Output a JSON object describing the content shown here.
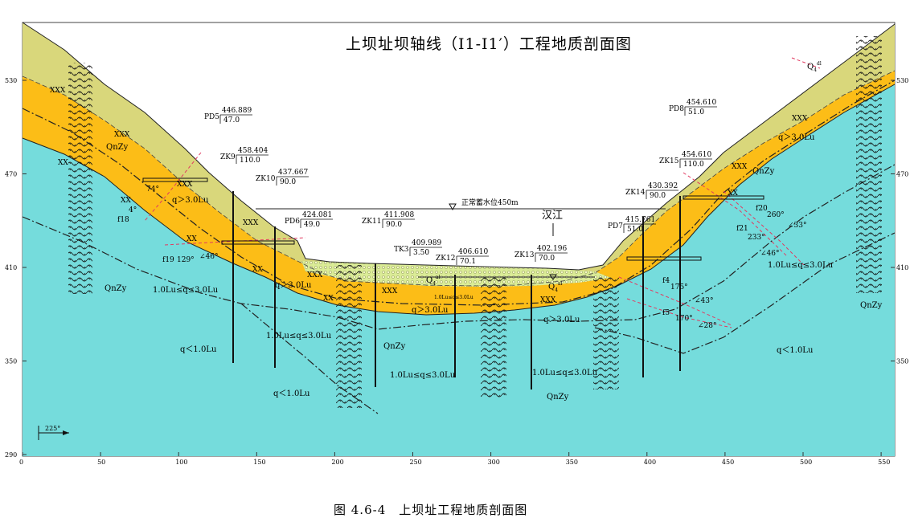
{
  "title": "上坝址坝轴线（Ⅰ1-Ⅰ1′）工程地质剖面图",
  "caption": "图 4.6-4　上坝址工程地质剖面图",
  "colors": {
    "bedrock": "#75dcdc",
    "weathered_strong": "#fcbd17",
    "weathered_top": "#d9d77b",
    "alluvium": "#dbec96",
    "alluvium_dot": "#f8fbd3",
    "pink_line": "#e13a60"
  },
  "axes": {
    "x_ticks": [
      "0",
      "50",
      "100",
      "150",
      "200",
      "250",
      "300",
      "350",
      "400",
      "450",
      "500",
      "550"
    ],
    "y_ticks_left": [
      "530",
      "470",
      "410",
      "350",
      "290"
    ],
    "y_ticks_right": [
      "530",
      "470",
      "410",
      "350"
    ]
  },
  "water_level": "正常蓄水位450m",
  "river_label": "汉江",
  "orientation": "225°",
  "boreholes": [
    {
      "name": "PD5",
      "elev": "446.889",
      "depth": "47.0"
    },
    {
      "name": "ZK9",
      "elev": "458.404",
      "depth": "110.0"
    },
    {
      "name": "ZK10",
      "elev": "437.667",
      "depth": "90.0"
    },
    {
      "name": "PD6",
      "elev": "424.081",
      "depth": "49.0"
    },
    {
      "name": "ZK11",
      "elev": "411.908",
      "depth": "90.0"
    },
    {
      "name": "TK3",
      "elev": "409.989",
      "depth": "3.50"
    },
    {
      "name": "ZK12",
      "elev": "406.610",
      "depth": "70.1"
    },
    {
      "name": "ZK13",
      "elev": "402.196",
      "depth": "70.0"
    },
    {
      "name": "PD7",
      "elev": "415.761",
      "depth": "51.0"
    },
    {
      "name": "ZK14",
      "elev": "430.392",
      "depth": "90.0"
    },
    {
      "name": "ZK15",
      "elev": "454.610",
      "depth": "110.0"
    },
    {
      "name": "PD8",
      "elev": "454.610",
      "depth": "51.0"
    }
  ],
  "labels": {
    "qnzy": "QnZy",
    "q_gt3": "q＞3.0Lu",
    "q_mid": "1.0Lu≤q≤3.0Lu",
    "q_lt1": "q＜1.0Lu",
    "q_small": "1.0Lu≤q≤3.0Lu",
    "xx": "XX",
    "xxx": "XXX",
    "q4": "Q",
    "q4_sub": "4",
    "dl_sup": "dl",
    "al_sup": "al",
    "f18": "f18",
    "f19": "f19",
    "f19_angle": "129°",
    "f19_dip": "∠46°",
    "f18_angle": "74°",
    "f18_dip": "4°",
    "f4": "f4",
    "f4_angle": "175°",
    "f4_dip": "∠43°",
    "f5": "f5",
    "f5_angle": "170°",
    "f5_dip": "∠28°",
    "f20": "f20",
    "f20_angle": "260°",
    "f20_dip": "∠33°",
    "f21": "f21",
    "f21_angle": "233°",
    "f21_dip": "∠46°"
  }
}
